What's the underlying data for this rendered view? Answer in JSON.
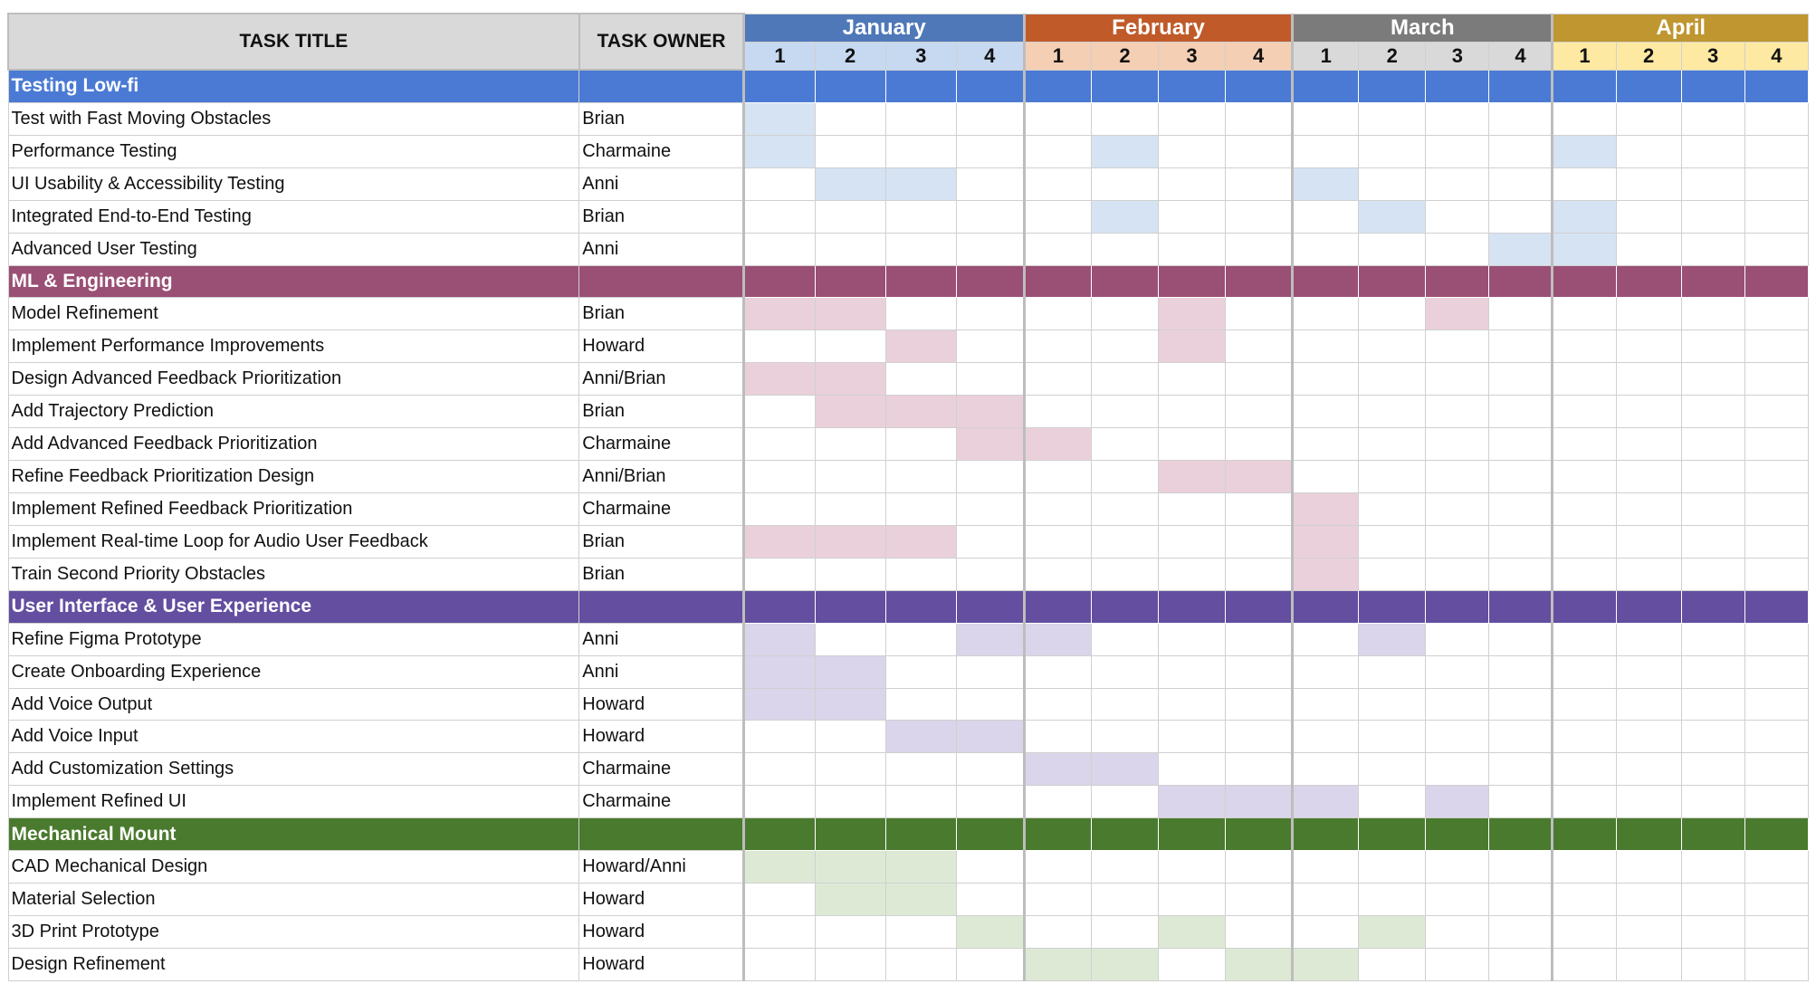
{
  "header": {
    "task_title_label": "TASK TITLE",
    "task_owner_label": "TASK OWNER"
  },
  "months": [
    {
      "name": "January",
      "color": "#4f78b8",
      "week_bg": "#c6d9f1"
    },
    {
      "name": "February",
      "color": "#c05a29",
      "week_bg": "#f4cfb4"
    },
    {
      "name": "March",
      "color": "#7b7b7b",
      "week_bg": "#d9d9d9"
    },
    {
      "name": "April",
      "color": "#bf962f",
      "week_bg": "#fde9a2"
    }
  ],
  "weeks": [
    "1",
    "2",
    "3",
    "4"
  ],
  "chart_data": {
    "type": "table",
    "columns": [
      "TASK TITLE",
      "TASK OWNER",
      "January 1",
      "January 2",
      "January 3",
      "January 4",
      "February 1",
      "February 2",
      "February 3",
      "February 4",
      "March 1",
      "March 2",
      "March 3",
      "March 4",
      "April 1",
      "April 2",
      "April 3",
      "April 4"
    ],
    "sections": [
      {
        "name": "Testing Low-fi",
        "header_color": "#4a7ad4",
        "fill_color": "#d6e3f3",
        "tasks": [
          {
            "title": "Test with Fast Moving Obstacles",
            "owner": "Brian",
            "weeks": [
              1
            ]
          },
          {
            "title": "Performance Testing",
            "owner": "Charmaine",
            "weeks": [
              1,
              6,
              13
            ]
          },
          {
            "title": "UI Usability & Accessibility Testing",
            "owner": "Anni",
            "weeks": [
              2,
              3,
              9
            ]
          },
          {
            "title": "Integrated End-to-End Testing",
            "owner": "Brian",
            "weeks": [
              6,
              10,
              13
            ]
          },
          {
            "title": "Advanced User Testing",
            "owner": "Anni",
            "weeks": [
              12,
              13
            ]
          }
        ]
      },
      {
        "name": "ML & Engineering",
        "header_color": "#9a4f74",
        "fill_color": "#ead0db",
        "tasks": [
          {
            "title": "Model Refinement",
            "owner": "Brian",
            "weeks": [
              1,
              2,
              7,
              11
            ]
          },
          {
            "title": "Implement Performance Improvements",
            "owner": "Howard",
            "weeks": [
              3,
              7
            ]
          },
          {
            "title": "Design Advanced Feedback Prioritization",
            "owner": "Anni/Brian",
            "weeks": [
              1,
              2
            ]
          },
          {
            "title": "Add Trajectory Prediction",
            "owner": "Brian",
            "weeks": [
              2,
              3,
              4
            ]
          },
          {
            "title": "Add Advanced Feedback Prioritization",
            "owner": "Charmaine",
            "weeks": [
              4,
              5
            ]
          },
          {
            "title": "Refine Feedback Prioritization Design",
            "owner": "Anni/Brian",
            "weeks": [
              7,
              8
            ]
          },
          {
            "title": "Implement Refined Feedback Prioritization",
            "owner": "Charmaine",
            "weeks": [
              9
            ]
          },
          {
            "title": "Implement Real-time Loop for Audio User Feedback",
            "owner": "Brian",
            "weeks": [
              1,
              2,
              3,
              9
            ]
          },
          {
            "title": "Train Second Priority Obstacles",
            "owner": "Brian",
            "weeks": [
              9
            ]
          }
        ]
      },
      {
        "name": "User Interface & User Experience",
        "header_color": "#634ea0",
        "fill_color": "#dad5ea",
        "tasks": [
          {
            "title": "Refine Figma Prototype",
            "owner": "Anni",
            "weeks": [
              1,
              4,
              5,
              10
            ]
          },
          {
            "title": "Create Onboarding Experience",
            "owner": "Anni",
            "weeks": [
              1,
              2
            ]
          },
          {
            "title": "Add Voice Output",
            "owner": "Howard",
            "weeks": [
              1,
              2
            ]
          },
          {
            "title": "Add Voice Input",
            "owner": "Howard",
            "weeks": [
              3,
              4
            ]
          },
          {
            "title": "Add Customization Settings",
            "owner": "Charmaine",
            "weeks": [
              5,
              6
            ]
          },
          {
            "title": "Implement Refined UI",
            "owner": "Charmaine",
            "weeks": [
              7,
              8,
              9,
              11
            ]
          }
        ]
      },
      {
        "name": "Mechanical Mount",
        "header_color": "#4a7a2e",
        "fill_color": "#dde9d5",
        "tasks": [
          {
            "title": "CAD Mechanical Design",
            "owner": "Howard/Anni",
            "weeks": [
              1,
              2,
              3
            ]
          },
          {
            "title": "Material Selection",
            "owner": "Howard",
            "weeks": [
              2,
              3
            ]
          },
          {
            "title": "3D Print Prototype",
            "owner": "Howard",
            "weeks": [
              4,
              7,
              10
            ]
          },
          {
            "title": "Design Refinement",
            "owner": "Howard",
            "weeks": [
              5,
              6,
              8,
              9
            ]
          }
        ]
      }
    ]
  }
}
